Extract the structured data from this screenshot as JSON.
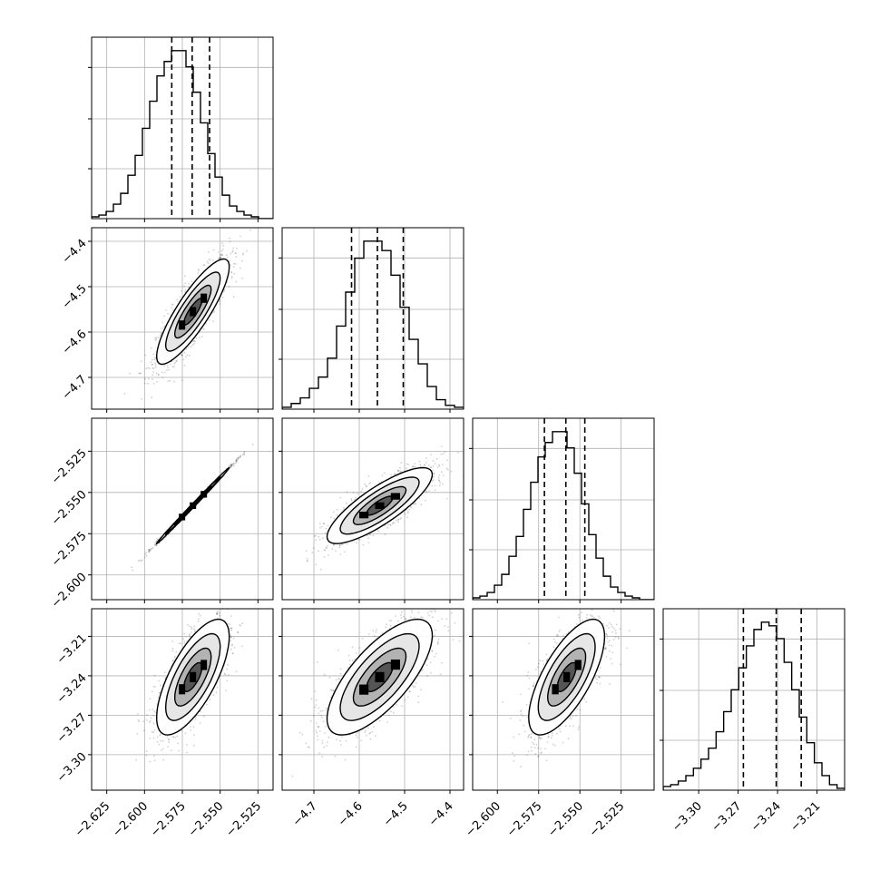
{
  "chart_data": {
    "type": "scatter",
    "layout": "corner",
    "grid": true,
    "colors": {
      "line": "#000000",
      "grid": "#b0b0b0",
      "points": "#000000"
    },
    "parameters": [
      {
        "range": [
          -2.635,
          -2.515
        ],
        "ticks": [
          -2.625,
          -2.6,
          -2.575,
          -2.55,
          -2.525
        ],
        "tick_labels": [
          "−2.625",
          "−2.600",
          "−2.575",
          "−2.550",
          "−2.525"
        ]
      },
      {
        "range": [
          -4.77,
          -4.37
        ],
        "ticks": [
          -4.7,
          -4.6,
          -4.5,
          -4.4
        ],
        "tick_labels": [
          "−4.7",
          "−4.6",
          "−4.5",
          "−4.4"
        ]
      },
      {
        "range": [
          -2.615,
          -2.505
        ],
        "ticks": [
          -2.6,
          -2.575,
          -2.55,
          -2.525
        ],
        "tick_labels": [
          "−2.600",
          "−2.575",
          "−2.550",
          "−2.525"
        ]
      },
      {
        "range": [
          -3.327,
          -3.189
        ],
        "ticks": [
          -3.3,
          -3.27,
          -3.24,
          -3.21
        ],
        "tick_labels": [
          "−3.30",
          "−3.27",
          "−3.24",
          "−3.21"
        ]
      }
    ],
    "marginals": [
      {
        "mean": -2.568,
        "sd": 0.012,
        "quantiles": [
          -2.582,
          -2.5685,
          -2.557
        ],
        "hist": [
          1,
          2,
          4,
          8,
          14,
          24,
          35,
          50,
          65,
          79,
          87,
          93,
          93,
          84,
          70,
          53,
          36,
          23,
          13,
          7,
          4,
          2,
          1,
          0,
          0
        ]
      },
      {
        "mean": -4.555,
        "sd": 0.058,
        "quantiles": [
          -4.617,
          -4.56,
          -4.503
        ],
        "hist": [
          1,
          3,
          6,
          11,
          17,
          27,
          44,
          62,
          80,
          89,
          89,
          84,
          71,
          54,
          37,
          24,
          12,
          5,
          2,
          1
        ]
      },
      {
        "mean": -2.558,
        "sd": 0.0115,
        "quantiles": [
          -2.5715,
          -2.5585,
          -2.547
        ],
        "hist": [
          1,
          2,
          4,
          8,
          14,
          24,
          35,
          50,
          65,
          79,
          87,
          93,
          93,
          84,
          70,
          53,
          36,
          23,
          13,
          7,
          4,
          2,
          1,
          0,
          0
        ]
      },
      {
        "mean": -3.241,
        "sd": 0.022,
        "quantiles": [
          -3.266,
          -3.241,
          -3.222
        ],
        "hist": [
          2,
          3,
          5,
          8,
          12,
          17,
          23,
          32,
          43,
          55,
          67,
          79,
          88,
          92,
          90,
          83,
          70,
          55,
          40,
          26,
          15,
          8,
          3,
          1
        ]
      }
    ],
    "correlations": {
      "1,0": 0.85,
      "2,0": 0.998,
      "2,1": 0.82,
      "3,0": 0.7,
      "3,1": 0.72,
      "3,2": 0.7
    }
  }
}
